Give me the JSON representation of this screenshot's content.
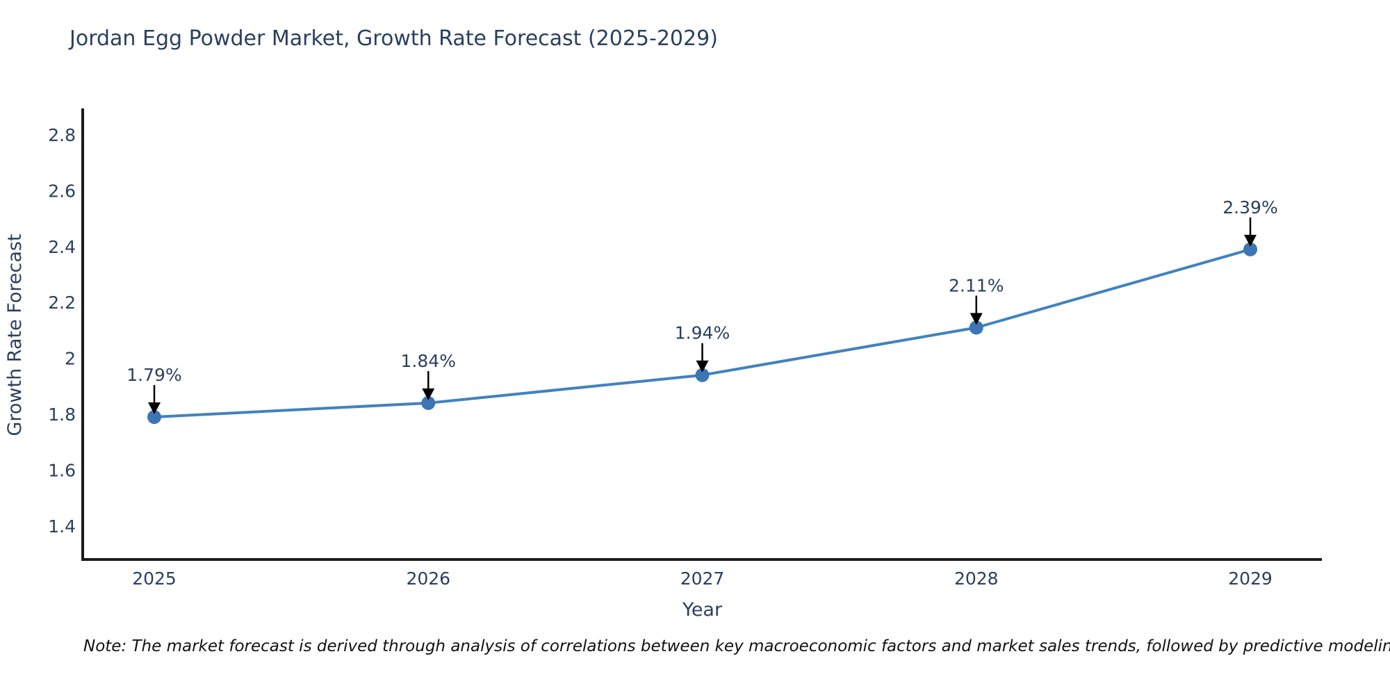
{
  "title": "Jordan Egg Powder Market, Growth Rate Forecast (2025-2029)",
  "note": "Note: The market forecast is derived through analysis of correlations between key macroeconomic factors and market sales trends, followed by predictive modeling to project future sales",
  "chart_data": {
    "type": "line",
    "x": [
      2025,
      2026,
      2027,
      2028,
      2029
    ],
    "values": [
      1.79,
      1.84,
      1.94,
      2.11,
      2.39
    ],
    "point_labels": [
      "1.79%",
      "1.84%",
      "1.94%",
      "2.11%",
      "2.39%"
    ],
    "series_name": "Growth Rate Forecast",
    "title": "Jordan Egg Powder Market, Growth Rate Forecast (2025-2029)",
    "xlabel": "Year",
    "ylabel": "Growth Rate Forecast",
    "xtick_labels": [
      "2025",
      "2026",
      "2027",
      "2028",
      "2029"
    ],
    "ytick_values": [
      2.8,
      2.6,
      2.4,
      2.2,
      2.0,
      1.8,
      1.6,
      1.4
    ],
    "ytick_labels": [
      "2.8",
      "2.6",
      "2.4",
      "2.2",
      "2",
      "1.8",
      "1.6",
      "1.4"
    ],
    "ylim": [
      1.28,
      2.9
    ],
    "grid": false,
    "legend_position": "none",
    "annotations": "black downward arrows from each value label to its data point",
    "colors": {
      "line": "#4182be",
      "marker": "#3c76b4",
      "axis": "#1a1a1a",
      "text": "#2a3f5f",
      "annotation": "#000000"
    }
  }
}
